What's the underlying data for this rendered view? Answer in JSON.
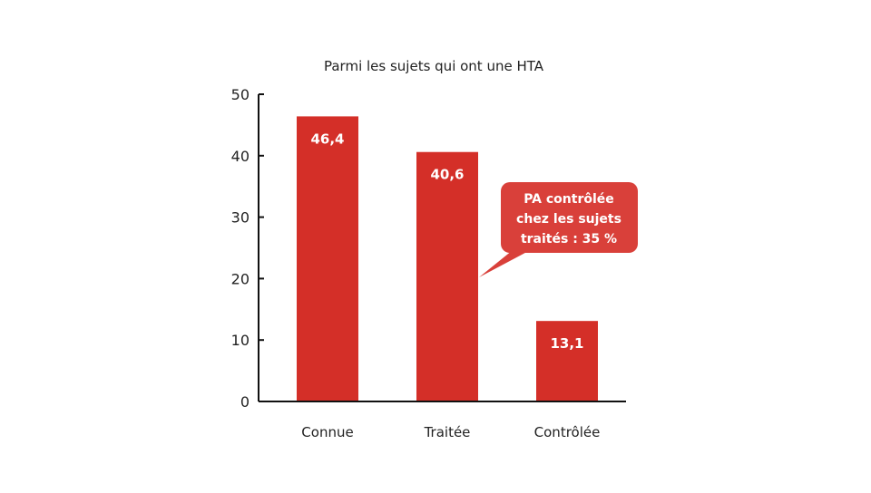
{
  "chart_data": {
    "type": "bar",
    "title": "Parmi les sujets qui ont une HTA",
    "categories": [
      "Connue",
      "Traitée",
      "Contrôlée"
    ],
    "values": [
      46.4,
      40.6,
      13.1
    ],
    "value_labels": [
      "46,4",
      "40,6",
      "13,1"
    ],
    "ylim": [
      0,
      50
    ],
    "yticks": [
      0,
      10,
      20,
      30,
      40,
      50
    ],
    "xlabel": "",
    "ylabel": "",
    "grid": false,
    "bar_color": "#d42f28",
    "annotation": {
      "lines": [
        "PA contrôlée",
        "chez les sujets",
        "traités : 35 %"
      ],
      "color": "#d9403a",
      "points_to": "Traitée"
    }
  }
}
